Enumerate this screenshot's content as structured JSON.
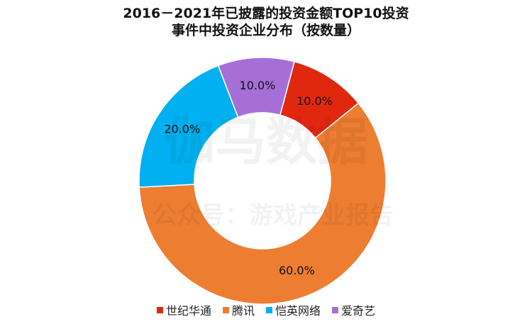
{
  "chart_data": {
    "type": "pie",
    "donut": true,
    "title_line1": "2016－2021年已披露的投资金额TOP10投资",
    "title_line2": "事件中投资企业分布（按数量）",
    "categories": [
      "世纪华通",
      "腾讯",
      "恺英网络",
      "爱奇艺"
    ],
    "values": [
      10.0,
      60.0,
      20.0,
      10.0
    ],
    "data_labels": [
      "10.0%",
      "60.0%",
      "20.0%",
      "10.0%"
    ],
    "colors": [
      "#e0280f",
      "#ed7d31",
      "#00b0f0",
      "#a66fd6"
    ],
    "legend_position": "bottom"
  },
  "watermark": {
    "main": "伽马数据",
    "sub": "公众号：游戏产业报告"
  }
}
